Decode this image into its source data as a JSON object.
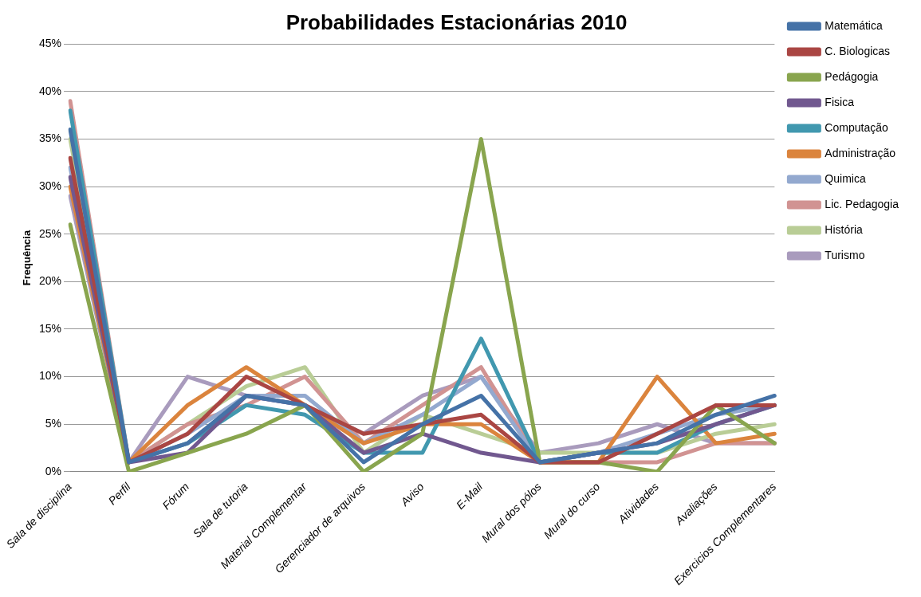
{
  "chart_data": {
    "type": "line",
    "title": "Probabilidades Estacionárias 2010",
    "ylabel": "Frequência",
    "categories": [
      "Sala de disciplina",
      "Perfil",
      "Fórum",
      "Sala de tutoria",
      "Material Complementar",
      "Gerenciador de arquivos",
      "Aviso",
      "E-Mail",
      "Mural dos pólos",
      "Mural do curso",
      "Atividades",
      "Avaliações",
      "Exercicios Complementares"
    ],
    "series": [
      {
        "name": "Matemática",
        "color": "#4572a7",
        "values": [
          36,
          1,
          3,
          8,
          7,
          1,
          5,
          8,
          1,
          2,
          3,
          6,
          8
        ]
      },
      {
        "name": "C. Biologicas",
        "color": "#aa4643",
        "values": [
          33,
          1,
          4,
          10,
          7,
          4,
          5,
          6,
          1,
          1,
          4,
          7,
          7
        ]
      },
      {
        "name": "Pedágogia",
        "color": "#89a54e",
        "values": [
          26,
          0,
          2,
          4,
          7,
          0,
          4,
          35,
          1,
          1,
          0,
          7,
          3
        ]
      },
      {
        "name": "Fisica",
        "color": "#71588f",
        "values": [
          31,
          1,
          2,
          8,
          7,
          2,
          4,
          2,
          1,
          2,
          3,
          5,
          7
        ]
      },
      {
        "name": "Computação",
        "color": "#4198af",
        "values": [
          38,
          1,
          3,
          7,
          6,
          2,
          2,
          14,
          1,
          2,
          2,
          5,
          7
        ]
      },
      {
        "name": "Administração",
        "color": "#db843d",
        "values": [
          30,
          1,
          7,
          11,
          7,
          3,
          5,
          5,
          1,
          1,
          10,
          3,
          4
        ]
      },
      {
        "name": "Quimica",
        "color": "#93a9cf",
        "values": [
          32,
          1,
          4,
          8,
          8,
          3,
          6,
          10,
          1,
          2,
          4,
          6,
          7
        ]
      },
      {
        "name": "Lic. Pedagogia",
        "color": "#d19392",
        "values": [
          39,
          1,
          5,
          7,
          10,
          3,
          7,
          11,
          1,
          1,
          1,
          3,
          3
        ]
      },
      {
        "name": "História",
        "color": "#b9cd96",
        "values": [
          35,
          1,
          5,
          9,
          11,
          2,
          6,
          4,
          2,
          2,
          2,
          4,
          5
        ]
      },
      {
        "name": "Turismo",
        "color": "#a99bbd",
        "values": [
          29,
          1,
          10,
          8,
          7,
          4,
          8,
          10,
          2,
          3,
          5,
          3,
          3
        ]
      }
    ],
    "ylim": [
      0,
      45
    ],
    "yticks": [
      {
        "value": 0,
        "label": "0%"
      },
      {
        "value": 5,
        "label": "5%"
      },
      {
        "value": 10,
        "label": "10%"
      },
      {
        "value": 15,
        "label": "15%"
      },
      {
        "value": 20,
        "label": "20%"
      },
      {
        "value": 25,
        "label": "25%"
      },
      {
        "value": 30,
        "label": "30%"
      },
      {
        "value": 35,
        "label": "35%"
      },
      {
        "value": 40,
        "label": "40%"
      },
      {
        "value": 45,
        "label": "45%"
      }
    ],
    "grid": "y",
    "legend": "right",
    "marker": "none",
    "line_style": "solid"
  }
}
